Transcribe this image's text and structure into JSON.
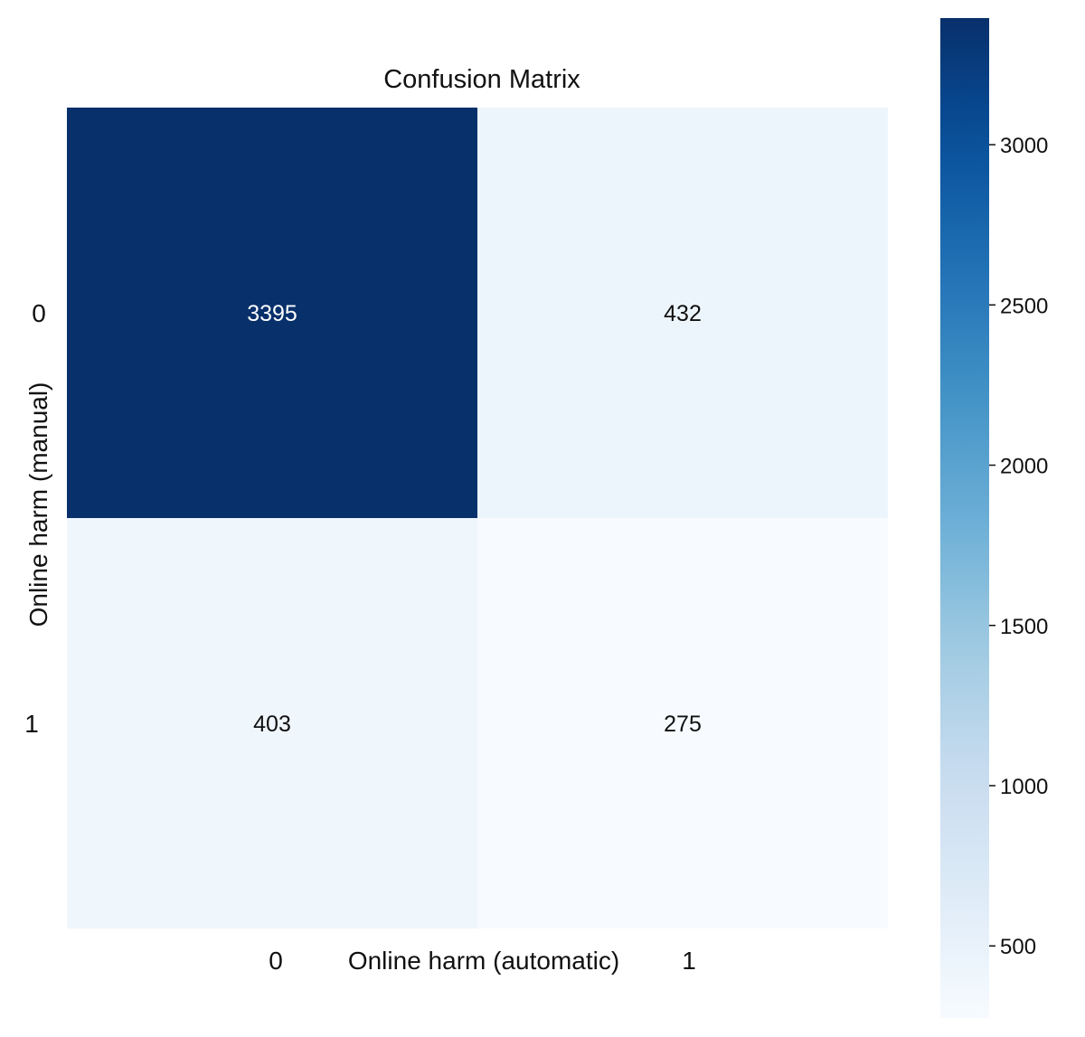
{
  "chart_data": {
    "type": "heatmap",
    "title": "Confusion Matrix",
    "xlabel": "Online harm (automatic)",
    "ylabel": "Online harm (manual)",
    "x_categories": [
      "0",
      "1"
    ],
    "y_categories": [
      "0",
      "1"
    ],
    "matrix": [
      [
        3395,
        432
      ],
      [
        403,
        275
      ]
    ],
    "colormap": "Blues",
    "colorbar": {
      "min": 275,
      "max": 3395,
      "ticks": [
        500,
        1000,
        1500,
        2000,
        2500,
        3000
      ],
      "tick_labels": [
        "500",
        "1000",
        "1500",
        "2000",
        "2500",
        "3000"
      ]
    },
    "colors": {
      "low": "#f7fbff",
      "high": "#08306b",
      "annotation_dark_text": "#111111",
      "annotation_light_text": "#ffffff"
    },
    "grid": false
  }
}
